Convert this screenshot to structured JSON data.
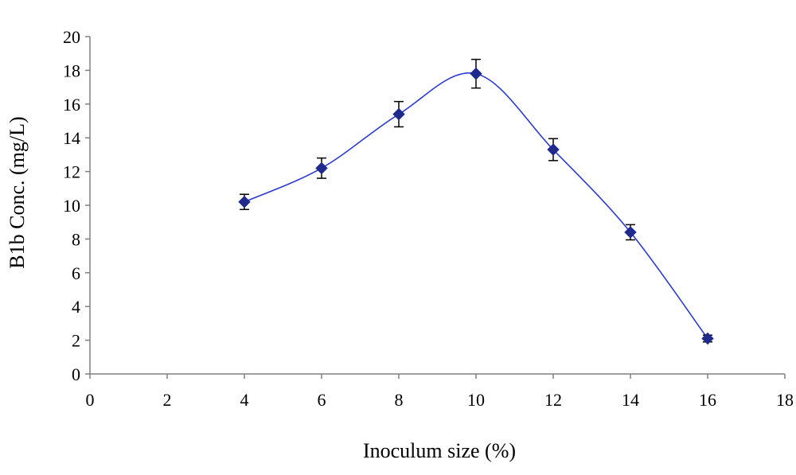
{
  "chart_data": {
    "type": "scatter",
    "title": "",
    "xlabel": "Inoculum size (%)",
    "ylabel": "B1b Conc. (mg/L)",
    "xlim": [
      0,
      18
    ],
    "ylim": [
      0,
      20
    ],
    "x_ticks": [
      0,
      2,
      4,
      6,
      8,
      10,
      12,
      14,
      16,
      18
    ],
    "y_ticks": [
      0,
      2,
      4,
      6,
      8,
      10,
      12,
      14,
      16,
      18,
      20
    ],
    "grid": false,
    "legend": "none",
    "marker": "diamond",
    "line": "smoothed",
    "series": [
      {
        "color": "#1f2a8c",
        "x": [
          4,
          6,
          8,
          10,
          12,
          14,
          16
        ],
        "y": [
          10.2,
          12.2,
          15.4,
          17.8,
          13.3,
          8.4,
          2.1
        ],
        "error": [
          0.45,
          0.6,
          0.75,
          0.85,
          0.65,
          0.45,
          0.2
        ]
      }
    ]
  }
}
